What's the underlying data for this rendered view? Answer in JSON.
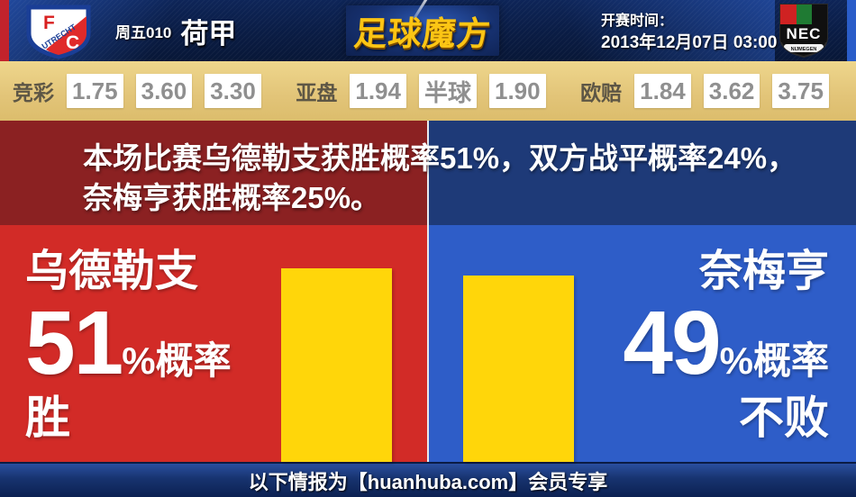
{
  "header": {
    "match_no": "周五010",
    "league": "荷甲",
    "site_logo": "足球魔方",
    "kickoff_label": "开赛时间：",
    "kickoff_time": "2013年12月07日 03:00",
    "home_badge": {
      "top_letter": "F",
      "bottom_letter": "C",
      "band_text": "UTRECHT"
    },
    "away_badge": {
      "name": "NEC",
      "ribbon": "NIJMEGEN"
    }
  },
  "odds": {
    "jingcai": {
      "label": "竞彩",
      "values": [
        "1.75",
        "3.60",
        "3.30"
      ]
    },
    "yapan": {
      "label": "亚盘",
      "values": [
        "1.94",
        "半球",
        "1.90"
      ]
    },
    "oupei": {
      "label": "欧赔",
      "values": [
        "1.84",
        "3.62",
        "3.75"
      ]
    }
  },
  "summary": "本场比赛乌德勒支获胜概率51%，双方战平概率24%，奈梅亨获胜概率25%。",
  "prediction": {
    "home": {
      "name": "乌德勒支",
      "percent": 51,
      "suffix": "%概率",
      "outcome": "胜"
    },
    "away": {
      "name": "奈梅亨",
      "percent": 49,
      "suffix": "%概率",
      "outcome": "不败"
    },
    "draw_percent": 24
  },
  "footer": {
    "text": "以下情报为【huanhuba.com】会员专享"
  },
  "colors": {
    "home_red": "#d22b27",
    "home_dark_red": "#8b2122",
    "away_blue": "#2e5dc8",
    "away_dark_blue": "#1e3a78",
    "bar_yellow": "#ffd60a",
    "odds_gold": "#e2c478",
    "logo_gold": "#fcc514",
    "header_navy": "#0a1c44"
  }
}
